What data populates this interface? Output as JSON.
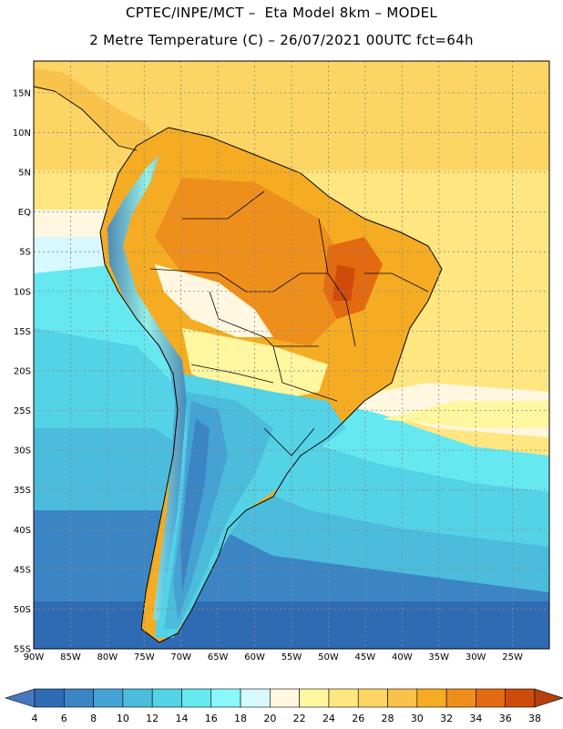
{
  "header": {
    "line1": "CPTEC/INPE/MCT –  Eta Model 8km – MODEL",
    "line2": "2 Metre Temperature (C) – 26/07/2021 00UTC fct=64h"
  },
  "map": {
    "lon_range": [
      -90,
      -20
    ],
    "lat_range": [
      -55,
      19
    ],
    "lon_ticks": [
      {
        "value": -90,
        "label": "90W"
      },
      {
        "value": -85,
        "label": "85W"
      },
      {
        "value": -80,
        "label": "80W"
      },
      {
        "value": -75,
        "label": "75W"
      },
      {
        "value": -70,
        "label": "70W"
      },
      {
        "value": -65,
        "label": "65W"
      },
      {
        "value": -60,
        "label": "60W"
      },
      {
        "value": -55,
        "label": "55W"
      },
      {
        "value": -50,
        "label": "50W"
      },
      {
        "value": -45,
        "label": "45W"
      },
      {
        "value": -40,
        "label": "40W"
      },
      {
        "value": -35,
        "label": "35W"
      },
      {
        "value": -30,
        "label": "30W"
      },
      {
        "value": -25,
        "label": "25W"
      }
    ],
    "lat_ticks": [
      {
        "value": 15,
        "label": "15N"
      },
      {
        "value": 10,
        "label": "10N"
      },
      {
        "value": 5,
        "label": "5N"
      },
      {
        "value": 0,
        "label": "EQ"
      },
      {
        "value": -5,
        "label": "5S"
      },
      {
        "value": -10,
        "label": "10S"
      },
      {
        "value": -15,
        "label": "15S"
      },
      {
        "value": -20,
        "label": "20S"
      },
      {
        "value": -25,
        "label": "25S"
      },
      {
        "value": -30,
        "label": "30S"
      },
      {
        "value": -35,
        "label": "35S"
      },
      {
        "value": -40,
        "label": "40S"
      },
      {
        "value": -45,
        "label": "45S"
      },
      {
        "value": -50,
        "label": "50S"
      },
      {
        "value": -55,
        "label": "55S"
      }
    ],
    "grid": true
  },
  "colorbar": {
    "labels": [
      "4",
      "6",
      "8",
      "10",
      "12",
      "14",
      "16",
      "18",
      "20",
      "22",
      "24",
      "26",
      "28",
      "30",
      "32",
      "34",
      "36",
      "38"
    ],
    "low_color": "#4a78c0",
    "high_color": "#b5400c",
    "colors": [
      "#2f6bb3",
      "#3b85c4",
      "#45a2d4",
      "#4bbcdc",
      "#54d2e6",
      "#66e8f0",
      "#8af7fb",
      "#d6f8ff",
      "#fff7e0",
      "#fff6a0",
      "#ffe680",
      "#fdd565",
      "#f9c24a",
      "#f5ac22",
      "#ef8f1b",
      "#e46a10",
      "#cf4b0c"
    ]
  }
}
